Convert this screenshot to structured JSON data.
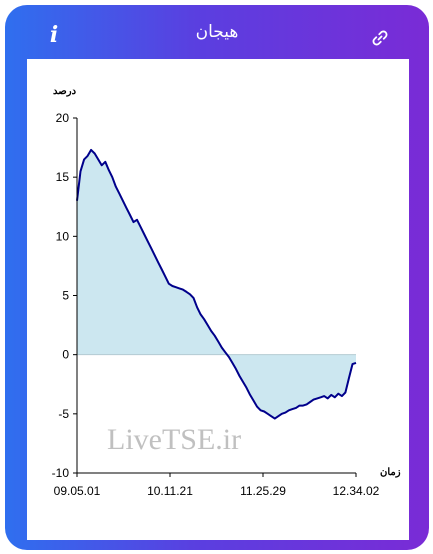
{
  "header": {
    "title": "هیجان",
    "info_label": "i",
    "icons": {
      "info": "info-icon",
      "link": "link-icon"
    }
  },
  "colors": {
    "line": "#00008b",
    "fill": "#cce7f0",
    "accent_start": "#2f6fef",
    "accent_end": "#7a2bd6"
  },
  "watermark": "LiveTSE.ir",
  "chart_data": {
    "type": "area",
    "ylabel": "درصد",
    "xlabel": "زمان",
    "ylim": [
      -10,
      20
    ],
    "yticks": [
      "20",
      "15",
      "10",
      "5",
      "0",
      "-5",
      "-10"
    ],
    "xticks": [
      "09.05.01",
      "10.11.21",
      "11.25.29",
      "12.34.02"
    ],
    "baseline": 0,
    "grid": false,
    "series": [
      {
        "points": [
          [
            0,
            13.0
          ],
          [
            1,
            15.5
          ],
          [
            2,
            16.5
          ],
          [
            3,
            16.8
          ],
          [
            4,
            17.3
          ],
          [
            5,
            17.0
          ],
          [
            6,
            16.5
          ],
          [
            7,
            16.0
          ],
          [
            8,
            16.3
          ],
          [
            9,
            15.6
          ],
          [
            10,
            15.0
          ],
          [
            11,
            14.2
          ],
          [
            12,
            13.6
          ],
          [
            13,
            13.0
          ],
          [
            14,
            12.4
          ],
          [
            15,
            11.8
          ],
          [
            16,
            11.2
          ],
          [
            17,
            11.4
          ],
          [
            18,
            10.8
          ],
          [
            19,
            10.2
          ],
          [
            20,
            9.6
          ],
          [
            21,
            9.0
          ],
          [
            22,
            8.4
          ],
          [
            23,
            7.8
          ],
          [
            24,
            7.2
          ],
          [
            25,
            6.6
          ],
          [
            26,
            6.0
          ],
          [
            27,
            5.8
          ],
          [
            28,
            5.7
          ],
          [
            29,
            5.6
          ],
          [
            30,
            5.5
          ],
          [
            31,
            5.3
          ],
          [
            32,
            5.1
          ],
          [
            33,
            4.8
          ],
          [
            34,
            4.0
          ],
          [
            35,
            3.4
          ],
          [
            36,
            3.0
          ],
          [
            37,
            2.5
          ],
          [
            38,
            2.0
          ],
          [
            39,
            1.6
          ],
          [
            40,
            1.1
          ],
          [
            41,
            0.6
          ],
          [
            42,
            0.2
          ],
          [
            43,
            -0.2
          ],
          [
            44,
            -0.7
          ],
          [
            45,
            -1.2
          ],
          [
            46,
            -1.8
          ],
          [
            47,
            -2.3
          ],
          [
            48,
            -2.8
          ],
          [
            49,
            -3.4
          ],
          [
            50,
            -3.9
          ],
          [
            51,
            -4.4
          ],
          [
            52,
            -4.7
          ],
          [
            53,
            -4.8
          ],
          [
            54,
            -5.0
          ],
          [
            55,
            -5.2
          ],
          [
            56,
            -5.4
          ],
          [
            57,
            -5.2
          ],
          [
            58,
            -5.0
          ],
          [
            59,
            -4.9
          ],
          [
            60,
            -4.7
          ],
          [
            61,
            -4.6
          ],
          [
            62,
            -4.5
          ],
          [
            63,
            -4.3
          ],
          [
            64,
            -4.3
          ],
          [
            65,
            -4.2
          ],
          [
            66,
            -4.0
          ],
          [
            67,
            -3.8
          ],
          [
            68,
            -3.7
          ],
          [
            69,
            -3.6
          ],
          [
            70,
            -3.5
          ],
          [
            71,
            -3.7
          ],
          [
            72,
            -3.4
          ],
          [
            73,
            -3.6
          ],
          [
            74,
            -3.3
          ],
          [
            75,
            -3.5
          ],
          [
            76,
            -3.2
          ],
          [
            77,
            -2.0
          ],
          [
            78,
            -0.8
          ],
          [
            79,
            -0.7
          ]
        ]
      }
    ]
  }
}
